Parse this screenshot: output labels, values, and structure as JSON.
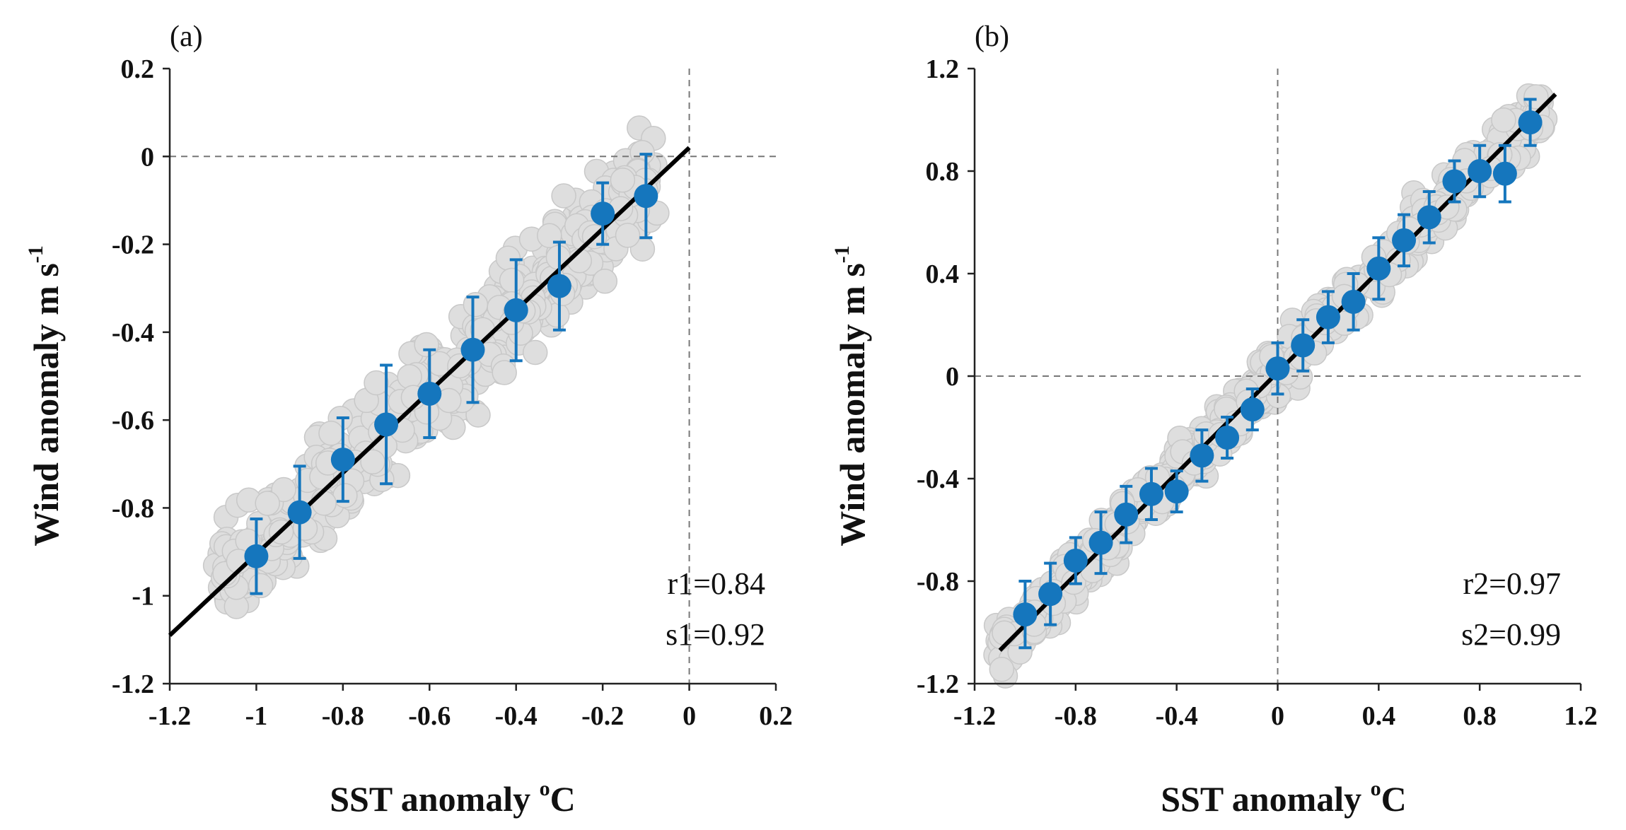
{
  "colors": {
    "scatter": "#dedede",
    "scatter_edge": "#c8c8c8",
    "binned": "#1576bd",
    "fit": "#000000",
    "zero": "#777777"
  },
  "chart_data": [
    {
      "type": "scatter",
      "panel_label": "(a)",
      "xlabel": "SST anomaly",
      "xlabel_unit": "o",
      "xlabel_unit_tail": "C",
      "ylabel": "Wind anomaly  m s",
      "ylabel_sup": "-1",
      "xlim": [
        -1.2,
        0.2
      ],
      "ylim": [
        -1.2,
        0.2
      ],
      "xticks": [
        -1.2,
        -1,
        -0.8,
        -0.6,
        -0.4,
        -0.2,
        0,
        0.2
      ],
      "xtick_labels": [
        "-1.2",
        "-1",
        "-0.8",
        "-0.6",
        "-0.4",
        "-0.2",
        "0",
        "0.2"
      ],
      "yticks": [
        0.2,
        0,
        -0.2,
        -0.4,
        -0.6,
        -0.8,
        -1,
        -1.2
      ],
      "ytick_labels": [
        "0.2",
        "0",
        "-0.2",
        "-0.4",
        "-0.6",
        "-0.8",
        "-1",
        "-1.2"
      ],
      "fit_line": {
        "x": [
          -1.2,
          0.0
        ],
        "y": [
          -1.09,
          0.02
        ]
      },
      "binned_means": [
        {
          "x": -1.0,
          "y": -0.91,
          "err": 0.085
        },
        {
          "x": -0.9,
          "y": -0.81,
          "err": 0.105
        },
        {
          "x": -0.8,
          "y": -0.69,
          "err": 0.095
        },
        {
          "x": -0.7,
          "y": -0.61,
          "err": 0.135
        },
        {
          "x": -0.6,
          "y": -0.54,
          "err": 0.1
        },
        {
          "x": -0.5,
          "y": -0.44,
          "err": 0.12
        },
        {
          "x": -0.4,
          "y": -0.35,
          "err": 0.115
        },
        {
          "x": -0.3,
          "y": -0.295,
          "err": 0.1
        },
        {
          "x": -0.2,
          "y": -0.13,
          "err": 0.07
        },
        {
          "x": -0.1,
          "y": -0.09,
          "err": 0.095
        }
      ],
      "scatter": {
        "slope": 0.92,
        "intercept": 0.02,
        "spread": 0.09,
        "n": 520,
        "xrange": [
          -1.08,
          -0.08
        ]
      },
      "annotations": [
        "r1=0.84",
        "s1=0.92"
      ]
    },
    {
      "type": "scatter",
      "panel_label": "(b)",
      "xlabel": "SST anomaly",
      "xlabel_unit": "o",
      "xlabel_unit_tail": "C",
      "ylabel": "Wind anomaly  m s",
      "ylabel_sup": "-1",
      "xlim": [
        -1.2,
        1.2
      ],
      "ylim": [
        -1.2,
        1.2
      ],
      "xticks": [
        -1.2,
        -0.8,
        -0.4,
        0,
        0.4,
        0.8,
        1.2
      ],
      "xtick_labels": [
        "-1.2",
        "-0.8",
        "-0.4",
        "0",
        "0.4",
        "0.8",
        "1.2"
      ],
      "yticks": [
        1.2,
        0.8,
        0.4,
        0,
        -0.4,
        -0.8,
        -1.2
      ],
      "ytick_labels": [
        "1.2",
        "0.8",
        "0.4",
        "0",
        "-0.4",
        "-0.8",
        "-1.2"
      ],
      "fit_line": {
        "x": [
          -1.1,
          1.1
        ],
        "y": [
          -1.07,
          1.1
        ]
      },
      "binned_means": [
        {
          "x": -1.0,
          "y": -0.93,
          "err": 0.13
        },
        {
          "x": -0.9,
          "y": -0.85,
          "err": 0.12
        },
        {
          "x": -0.8,
          "y": -0.72,
          "err": 0.09
        },
        {
          "x": -0.7,
          "y": -0.65,
          "err": 0.12
        },
        {
          "x": -0.6,
          "y": -0.54,
          "err": 0.11
        },
        {
          "x": -0.5,
          "y": -0.46,
          "err": 0.1
        },
        {
          "x": -0.4,
          "y": -0.45,
          "err": 0.08
        },
        {
          "x": -0.3,
          "y": -0.31,
          "err": 0.1
        },
        {
          "x": -0.2,
          "y": -0.24,
          "err": 0.08
        },
        {
          "x": -0.1,
          "y": -0.13,
          "err": 0.08
        },
        {
          "x": 0.0,
          "y": 0.03,
          "err": 0.1
        },
        {
          "x": 0.1,
          "y": 0.12,
          "err": 0.1
        },
        {
          "x": 0.2,
          "y": 0.23,
          "err": 0.1
        },
        {
          "x": 0.3,
          "y": 0.29,
          "err": 0.11
        },
        {
          "x": 0.4,
          "y": 0.42,
          "err": 0.12
        },
        {
          "x": 0.5,
          "y": 0.53,
          "err": 0.1
        },
        {
          "x": 0.6,
          "y": 0.62,
          "err": 0.1
        },
        {
          "x": 0.7,
          "y": 0.76,
          "err": 0.08
        },
        {
          "x": 0.8,
          "y": 0.8,
          "err": 0.1
        },
        {
          "x": 0.9,
          "y": 0.79,
          "err": 0.11
        },
        {
          "x": 1.0,
          "y": 0.99,
          "err": 0.09
        }
      ],
      "scatter": {
        "slope": 0.99,
        "intercept": 0.02,
        "spread": 0.08,
        "n": 620,
        "xrange": [
          -1.12,
          1.06
        ]
      },
      "annotations": [
        "r2=0.97",
        "s2=0.99"
      ]
    }
  ]
}
